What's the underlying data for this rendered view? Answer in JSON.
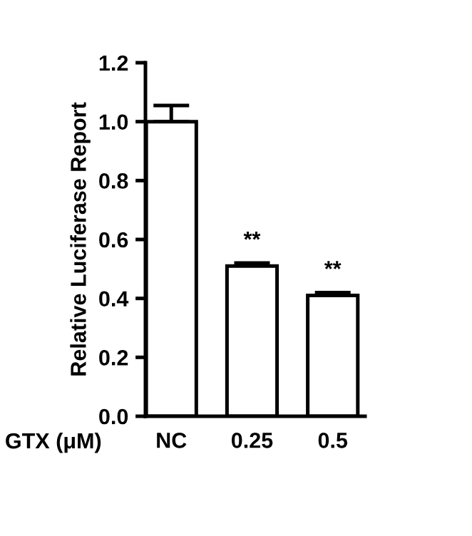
{
  "chart_data": {
    "type": "bar",
    "categories": [
      "NC",
      "0.25",
      "0.5"
    ],
    "values": [
      1.0,
      0.51,
      0.41
    ],
    "errors": [
      [
        1.0,
        1.055
      ],
      [
        0.51,
        0.52
      ],
      [
        0.41,
        0.42
      ]
    ],
    "color": "#ffffff",
    "xlabel": "GTX (μM)",
    "ylabel": "Relative Luciferase Report",
    "ylim": [
      0,
      1.2
    ],
    "yticks": [
      {
        "value": 0,
        "label": "0.0"
      },
      0.2,
      0.4,
      0.6,
      0.8,
      {
        "value": 1,
        "label": "1.0"
      },
      1.2
    ],
    "annotations": [
      {
        "text": "**",
        "x": "0.25",
        "y": 0.52
      },
      {
        "text": "**",
        "x": "0.5",
        "y": 0.42
      }
    ],
    "grid": false
  }
}
